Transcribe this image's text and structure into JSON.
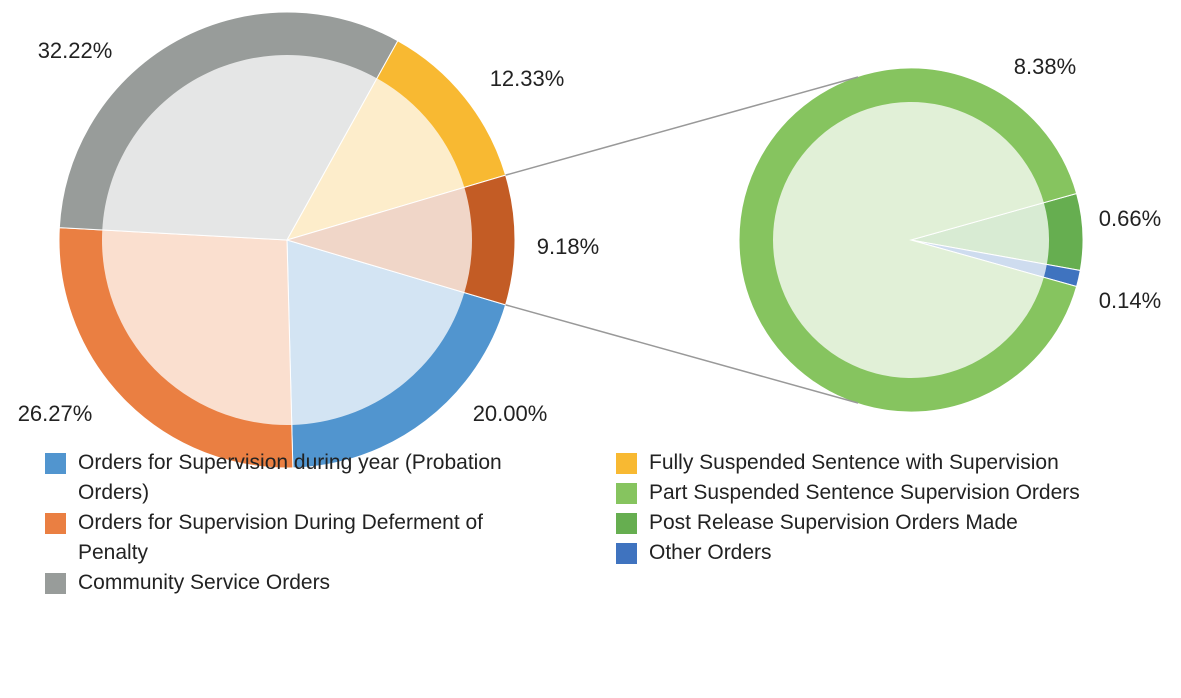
{
  "chart_data": {
    "type": "pie-of-pie",
    "categories": [
      "Orders for Supervision during year (Probation Orders)",
      "Orders for Supervision During Deferment of Penalty",
      "Community Service Orders",
      "Fully Suspended Sentence with Supervision",
      null
    ],
    "values": [
      20.0,
      26.27,
      32.22,
      12.33,
      9.18
    ],
    "value_labels": [
      "20.00%",
      "26.27%",
      "32.22%",
      "12.33%",
      "9.18%"
    ],
    "colors": [
      "#5195cf",
      "#ea7f42",
      "#989c9a",
      "#f8b932",
      "#c35c25"
    ],
    "secondary": {
      "categories": [
        "Part Suspended Sentence Supervision Orders",
        "Post Release Supervision Orders Made",
        "Other Orders"
      ],
      "values": [
        8.38,
        0.66,
        0.14
      ],
      "value_labels": [
        "8.38%",
        "0.66%",
        "0.14%"
      ],
      "colors": [
        "#86c45f",
        "#66ae50",
        "#3f73bf"
      ]
    }
  }
}
